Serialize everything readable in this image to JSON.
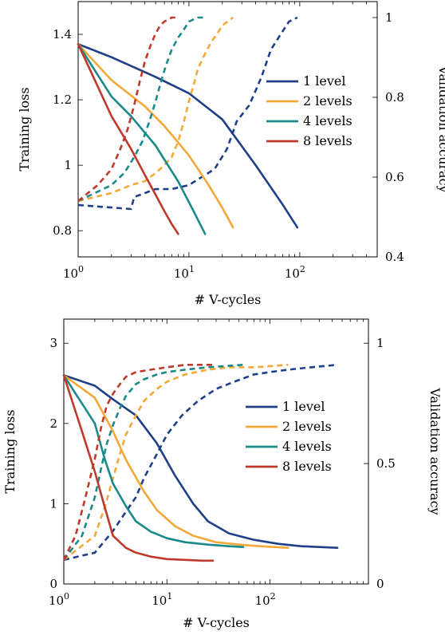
{
  "chart_data": [
    {
      "type": "line",
      "xlabel": "# V-cycles",
      "ylabel": "Training loss",
      "y2label": "Validation accuracy",
      "xscale": "log",
      "xlim": [
        1,
        500
      ],
      "ylim": [
        0.72,
        1.5
      ],
      "y2lim": [
        0.4,
        1.04
      ],
      "xticks": [
        1,
        10,
        100
      ],
      "xtick_labels": [
        "10",
        "10",
        "10"
      ],
      "xtick_exponents": [
        "0",
        "1",
        "2"
      ],
      "yticks": [
        0.8,
        1.0,
        1.2,
        1.4
      ],
      "ytick_labels": [
        "0.8",
        "1",
        "1.2",
        "1.4"
      ],
      "y2ticks": [
        0.4,
        0.6,
        0.8,
        1.0
      ],
      "y2tick_labels": [
        "0.4",
        "0.6",
        "0.8",
        "1"
      ],
      "legend_position": "right",
      "series": [
        {
          "name": "1 level",
          "color": "#1f3f88",
          "loss_x": [
            1,
            2,
            5,
            10,
            20,
            40,
            70,
            95
          ],
          "loss_y": [
            1.37,
            1.33,
            1.27,
            1.22,
            1.14,
            1.0,
            0.88,
            0.81
          ],
          "acc_x": [
            1,
            3,
            3.2,
            5,
            7,
            10,
            13,
            17,
            22,
            27,
            35,
            45,
            55,
            68,
            80,
            95
          ],
          "acc_y": [
            0.53,
            0.52,
            0.55,
            0.57,
            0.57,
            0.58,
            0.6,
            0.62,
            0.67,
            0.74,
            0.78,
            0.85,
            0.92,
            0.96,
            0.99,
            1.0
          ]
        },
        {
          "name": "2 levels",
          "color": "#f5a83a",
          "loss_x": [
            1,
            2,
            4,
            6,
            10,
            15,
            20,
            25
          ],
          "loss_y": [
            1.37,
            1.26,
            1.18,
            1.12,
            1.03,
            0.94,
            0.87,
            0.81
          ],
          "acc_x": [
            1,
            2,
            3,
            4,
            5,
            6,
            7,
            8,
            9,
            10,
            11,
            12,
            14,
            16,
            18,
            20,
            25
          ],
          "acc_y": [
            0.54,
            0.56,
            0.58,
            0.59,
            0.61,
            0.63,
            0.65,
            0.69,
            0.74,
            0.79,
            0.83,
            0.87,
            0.91,
            0.94,
            0.96,
            0.98,
            1.0
          ]
        },
        {
          "name": "4 levels",
          "color": "#1b8a8a",
          "loss_x": [
            1,
            2,
            3,
            5,
            8,
            11,
            14
          ],
          "loss_y": [
            1.37,
            1.21,
            1.15,
            1.06,
            0.95,
            0.86,
            0.79
          ],
          "acc_x": [
            1,
            2,
            2.6,
            3.2,
            3.8,
            4.4,
            5,
            5.6,
            6.2,
            7,
            8,
            9,
            10,
            12,
            14
          ],
          "acc_y": [
            0.54,
            0.58,
            0.61,
            0.65,
            0.69,
            0.74,
            0.79,
            0.84,
            0.88,
            0.92,
            0.95,
            0.97,
            0.99,
            1.0,
            1.0
          ]
        },
        {
          "name": "8 levels",
          "color": "#bf3a2c",
          "loss_x": [
            1,
            2,
            3,
            4,
            5,
            6,
            7,
            8
          ],
          "loss_y": [
            1.37,
            1.15,
            1.05,
            0.97,
            0.91,
            0.86,
            0.82,
            0.79
          ],
          "acc_x": [
            1,
            1.5,
            2,
            2.4,
            2.8,
            3.2,
            3.6,
            4,
            4.5,
            5,
            5.5,
            6,
            7,
            8
          ],
          "acc_y": [
            0.54,
            0.58,
            0.62,
            0.67,
            0.72,
            0.78,
            0.84,
            0.89,
            0.93,
            0.96,
            0.98,
            0.99,
            1.0,
            1.0
          ]
        }
      ]
    },
    {
      "type": "line",
      "xlabel": "# V-cycles",
      "ylabel": "Training loss",
      "y2label": "Validation accuracy",
      "xscale": "log",
      "xlim": [
        1,
        900
      ],
      "ylim": [
        0,
        3.3
      ],
      "y2lim": [
        0,
        1.1
      ],
      "xticks": [
        1,
        10,
        100
      ],
      "xtick_labels": [
        "10",
        "10",
        "10"
      ],
      "xtick_exponents": [
        "0",
        "1",
        "2"
      ],
      "yticks": [
        0,
        1,
        2,
        3
      ],
      "ytick_labels": [
        "0",
        "1",
        "2",
        "3"
      ],
      "y2ticks": [
        0,
        0.5,
        1.0
      ],
      "y2tick_labels": [
        "0",
        "0.5",
        "1"
      ],
      "legend_position": "right",
      "series": [
        {
          "name": "1 level",
          "color": "#1f3f88",
          "loss_x": [
            1,
            2,
            3,
            5,
            8,
            12,
            18,
            25,
            40,
            70,
            120,
            200,
            300,
            450
          ],
          "loss_y": [
            2.6,
            2.47,
            2.3,
            2.1,
            1.75,
            1.35,
            1.0,
            0.78,
            0.63,
            0.55,
            0.5,
            0.47,
            0.46,
            0.45
          ],
          "acc_x": [
            1,
            2,
            3,
            4,
            5,
            6,
            8,
            10,
            14,
            20,
            30,
            45,
            70,
            100,
            150,
            250,
            450
          ],
          "acc_y": [
            0.1,
            0.13,
            0.22,
            0.3,
            0.36,
            0.44,
            0.54,
            0.62,
            0.7,
            0.76,
            0.81,
            0.84,
            0.87,
            0.88,
            0.89,
            0.9,
            0.91
          ]
        },
        {
          "name": "2 levels",
          "color": "#f5a83a",
          "loss_x": [
            1,
            2,
            3,
            4,
            6,
            8,
            12,
            18,
            30,
            50,
            80,
            150
          ],
          "loss_y": [
            2.6,
            2.32,
            1.9,
            1.55,
            1.15,
            0.92,
            0.72,
            0.6,
            0.52,
            0.49,
            0.47,
            0.45
          ],
          "acc_x": [
            1,
            2,
            2.5,
            3,
            3.5,
            4,
            5,
            6,
            8,
            10,
            15,
            25,
            40,
            70,
            150
          ],
          "acc_y": [
            0.1,
            0.2,
            0.32,
            0.44,
            0.54,
            0.62,
            0.7,
            0.76,
            0.81,
            0.84,
            0.87,
            0.89,
            0.9,
            0.9,
            0.91
          ]
        },
        {
          "name": "4 levels",
          "color": "#1b8a8a",
          "loss_x": [
            1,
            2,
            2.5,
            3,
            4,
            5,
            7,
            10,
            15,
            25,
            40,
            55
          ],
          "loss_y": [
            2.6,
            2.0,
            1.55,
            1.25,
            0.97,
            0.78,
            0.65,
            0.57,
            0.52,
            0.49,
            0.47,
            0.46
          ],
          "acc_x": [
            1,
            1.5,
            2,
            2.3,
            2.6,
            3,
            3.5,
            4,
            5,
            6,
            8,
            10,
            15,
            25,
            55
          ],
          "acc_y": [
            0.1,
            0.2,
            0.36,
            0.48,
            0.58,
            0.66,
            0.73,
            0.78,
            0.83,
            0.85,
            0.87,
            0.88,
            0.89,
            0.9,
            0.91
          ]
        },
        {
          "name": "8 levels",
          "color": "#bf3a2c",
          "loss_x": [
            1,
            1.5,
            2,
            2.5,
            3,
            4,
            5,
            7,
            10,
            15,
            22,
            28
          ],
          "loss_y": [
            2.6,
            1.9,
            1.4,
            0.95,
            0.6,
            0.45,
            0.39,
            0.34,
            0.31,
            0.3,
            0.29,
            0.29
          ],
          "acc_x": [
            1,
            1.3,
            1.6,
            2,
            2.3,
            2.6,
            3,
            3.5,
            4,
            5,
            7,
            10,
            15,
            28
          ],
          "acc_y": [
            0.1,
            0.2,
            0.35,
            0.52,
            0.65,
            0.74,
            0.79,
            0.83,
            0.86,
            0.88,
            0.89,
            0.9,
            0.91,
            0.91
          ]
        }
      ]
    }
  ]
}
